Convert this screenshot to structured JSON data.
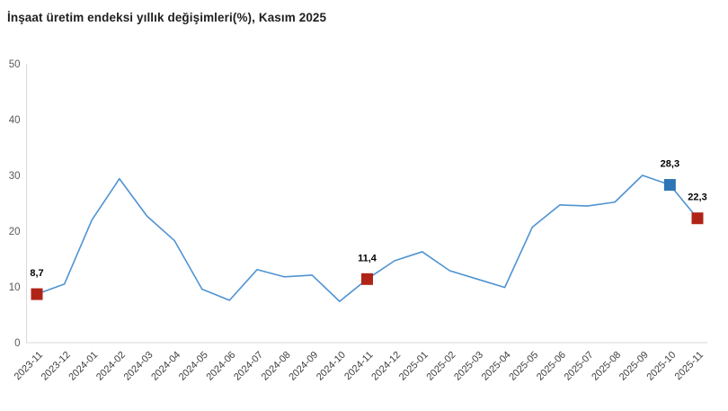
{
  "chart_data": {
    "type": "line",
    "title": "İnşaat üretim endeksi yıllık değişimleri(%), Kasım 2025",
    "xlabel": "",
    "ylabel": "",
    "ylim": [
      0,
      50
    ],
    "yticks": [
      0,
      10,
      20,
      30,
      40,
      50
    ],
    "grid": false,
    "legend_position": "none",
    "categories": [
      "2023-11",
      "2023-12",
      "2024-01",
      "2024-02",
      "2024-03",
      "2024-04",
      "2024-05",
      "2024-06",
      "2024-07",
      "2024-08",
      "2024-09",
      "2024-10",
      "2024-11",
      "2024-12",
      "2025-01",
      "2025-02",
      "2025-03",
      "2025-04",
      "2025-05",
      "2025-06",
      "2025-07",
      "2025-08",
      "2025-09",
      "2025-10",
      "2025-11"
    ],
    "values": [
      8.7,
      10.5,
      22.0,
      29.4,
      22.7,
      18.3,
      9.6,
      7.6,
      13.1,
      11.8,
      12.1,
      7.4,
      11.4,
      14.7,
      16.3,
      12.9,
      11.4,
      9.9,
      20.7,
      24.7,
      24.5,
      25.2,
      30.0,
      28.3,
      22.3
    ],
    "annotations": [
      {
        "x": "2023-11",
        "label": "8,7",
        "marker": "square",
        "marker_color": "#b02418"
      },
      {
        "x": "2024-11",
        "label": "11,4",
        "marker": "square",
        "marker_color": "#b02418"
      },
      {
        "x": "2025-10",
        "label": "28,3",
        "marker": "square",
        "marker_color": "#2e75b6"
      },
      {
        "x": "2025-11",
        "label": "22,3",
        "marker": "square",
        "marker_color": "#b02418"
      }
    ],
    "colors": {
      "line": "#4f93d2",
      "marker_red": "#b02418",
      "marker_blue": "#2e75b6",
      "axis": "#d9d9d9",
      "ytick_text": "#595959",
      "xtick_text": "#404040",
      "label_text": "#000000",
      "title_text": "#1f1f1f",
      "background": "#ffffff"
    }
  }
}
